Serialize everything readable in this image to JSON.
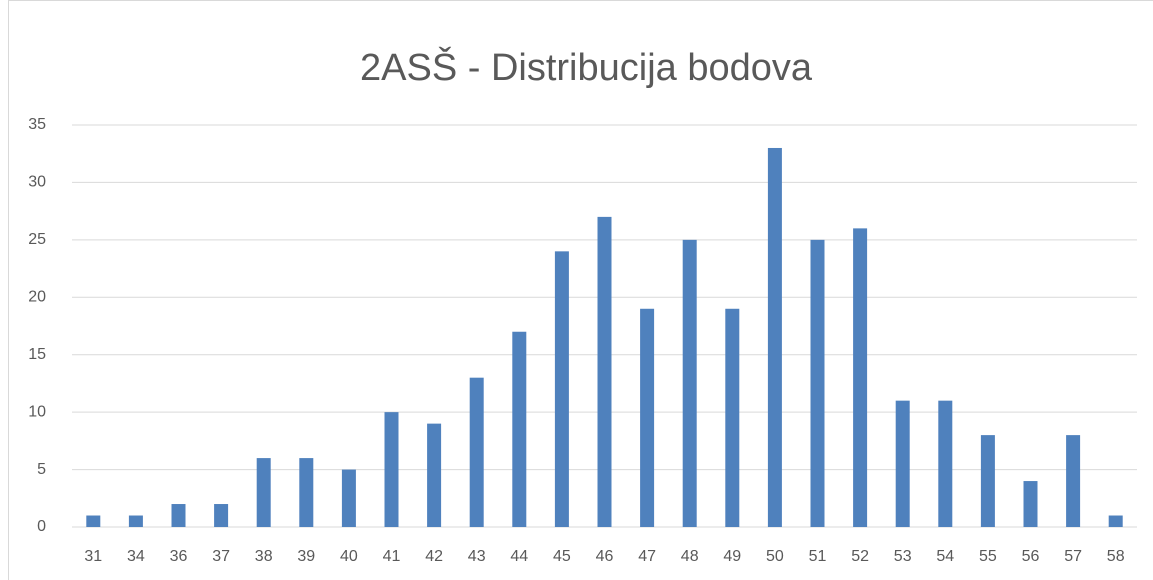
{
  "chart_data": {
    "type": "bar",
    "title": "2ASŠ - Distribucija bodova",
    "categories": [
      "31",
      "34",
      "36",
      "37",
      "38",
      "39",
      "40",
      "41",
      "42",
      "43",
      "44",
      "45",
      "46",
      "47",
      "48",
      "49",
      "50",
      "51",
      "52",
      "53",
      "54",
      "55",
      "56",
      "57",
      "58"
    ],
    "values": [
      1,
      1,
      2,
      2,
      6,
      6,
      5,
      10,
      9,
      13,
      17,
      24,
      27,
      19,
      25,
      19,
      33,
      25,
      26,
      11,
      11,
      8,
      4,
      8,
      1
    ],
    "color": "#4f81bd",
    "ylim": [
      0,
      35
    ],
    "yticks": [
      0,
      5,
      10,
      15,
      20,
      25,
      30,
      35
    ],
    "grid": true
  }
}
